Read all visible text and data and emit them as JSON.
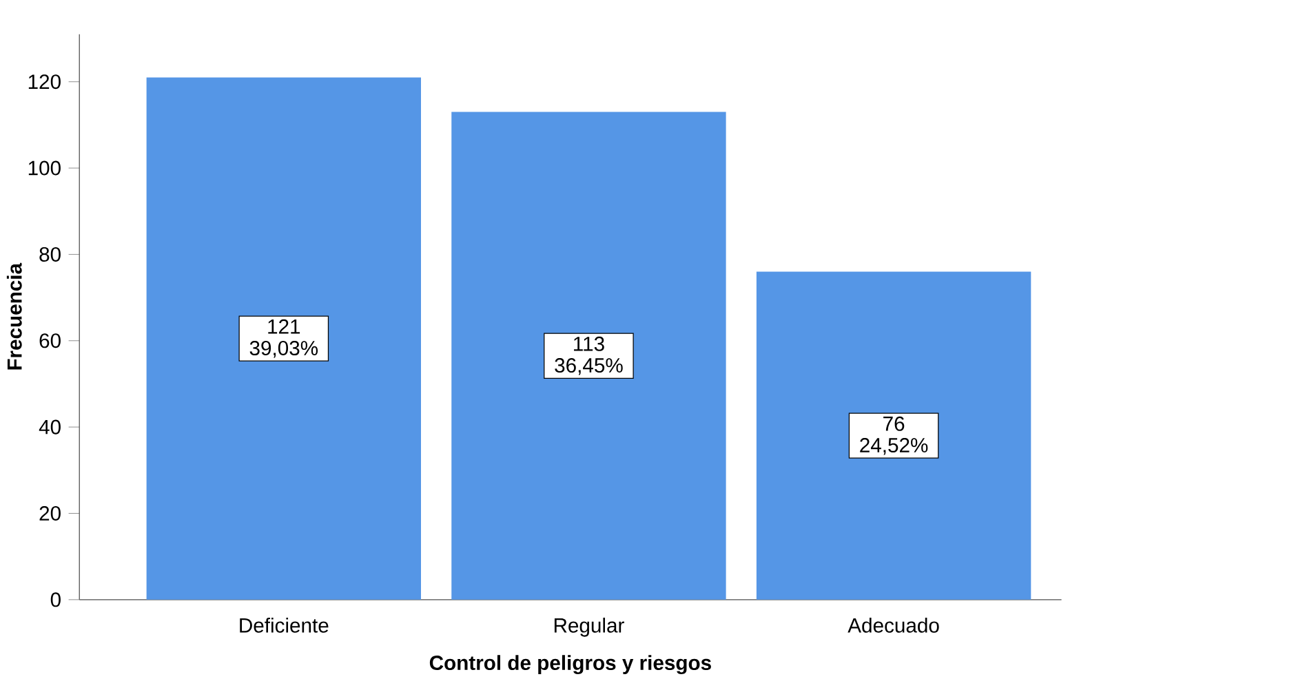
{
  "chart_data": {
    "type": "bar",
    "xlabel": "Control de peligros y riesgos",
    "ylabel": "Frecuencia",
    "categories": [
      "Deficiente",
      "Regular",
      "Adecuado"
    ],
    "values": [
      121,
      113,
      76
    ],
    "value_labels": [
      "121 39,03%",
      "113 36,45%",
      "76 24,52%"
    ],
    "color": "#5596e6",
    "ylim": [
      0,
      131
    ],
    "yticks": [
      0,
      20,
      40,
      60,
      80,
      100,
      120
    ],
    "grid": false
  }
}
